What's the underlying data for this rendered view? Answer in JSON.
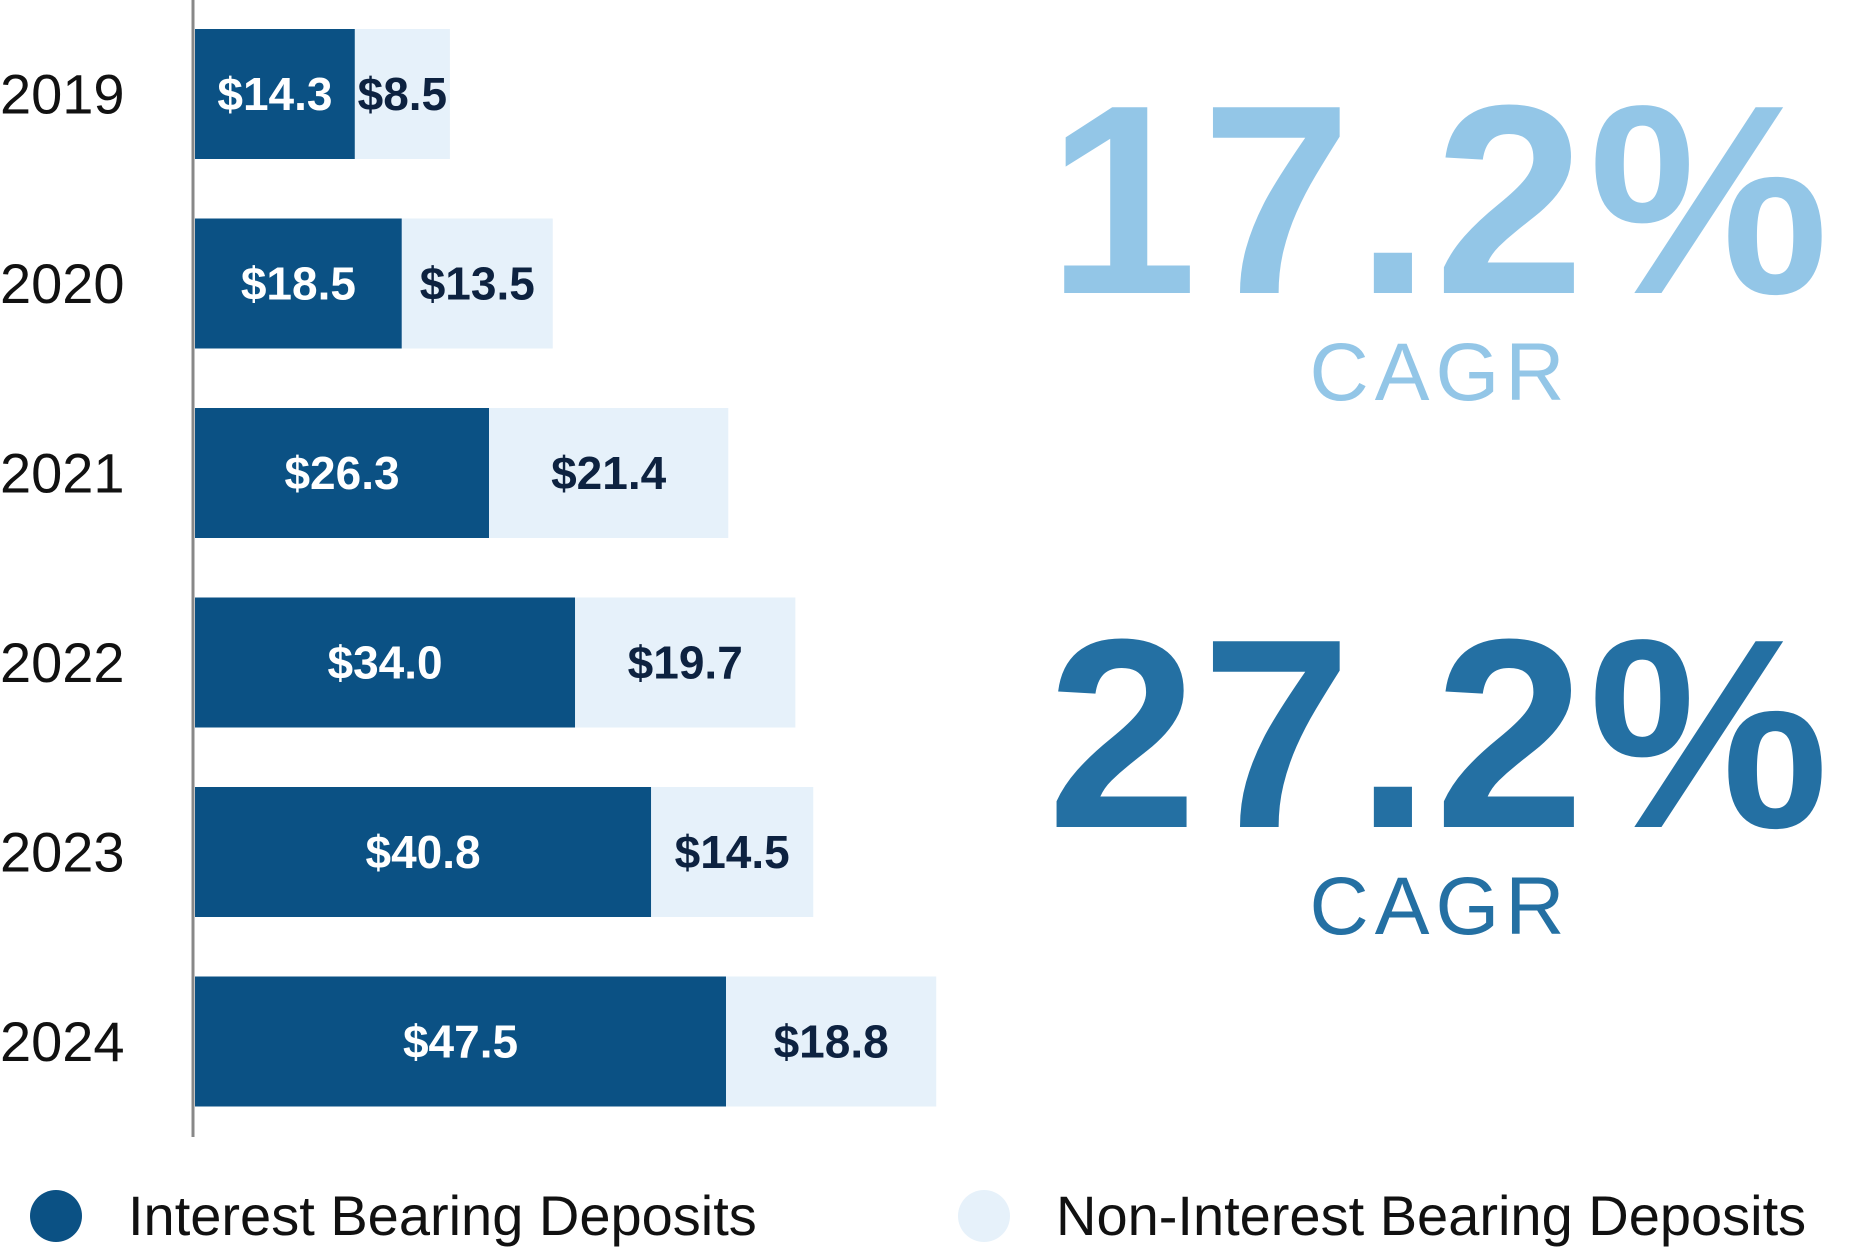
{
  "chart_data": {
    "type": "bar",
    "orientation": "horizontal",
    "stacked": true,
    "categories": [
      "2019",
      "2020",
      "2021",
      "2022",
      "2023",
      "2024"
    ],
    "series": [
      {
        "name": "Interest Bearing Deposits",
        "color": "#0B5184",
        "values": [
          14.3,
          18.5,
          26.3,
          34.0,
          40.8,
          47.5
        ],
        "labels": [
          "$14.3",
          "$18.5",
          "$26.3",
          "$34.0",
          "$40.8",
          "$47.5"
        ]
      },
      {
        "name": "Non-Interest Bearing Deposits",
        "color": "#E6F1FA",
        "values": [
          8.5,
          13.5,
          21.4,
          19.7,
          14.5,
          18.8
        ],
        "labels": [
          "$8.5",
          "$13.5",
          "$21.4",
          "$19.7",
          "$14.5",
          "$18.8"
        ]
      }
    ],
    "xlim": [
      0,
      78
    ],
    "legend_position": "bottom",
    "grid": false
  },
  "kpis": [
    {
      "value": "17.2%",
      "label": "CAGR",
      "color": "#93C6E7"
    },
    {
      "value": "27.2%",
      "label": "CAGR",
      "color": "#2470A3"
    }
  ],
  "colors": {
    "axis": "#888888",
    "label_on_dark": "#FFFFFF",
    "label_on_light": "#0D2240"
  }
}
